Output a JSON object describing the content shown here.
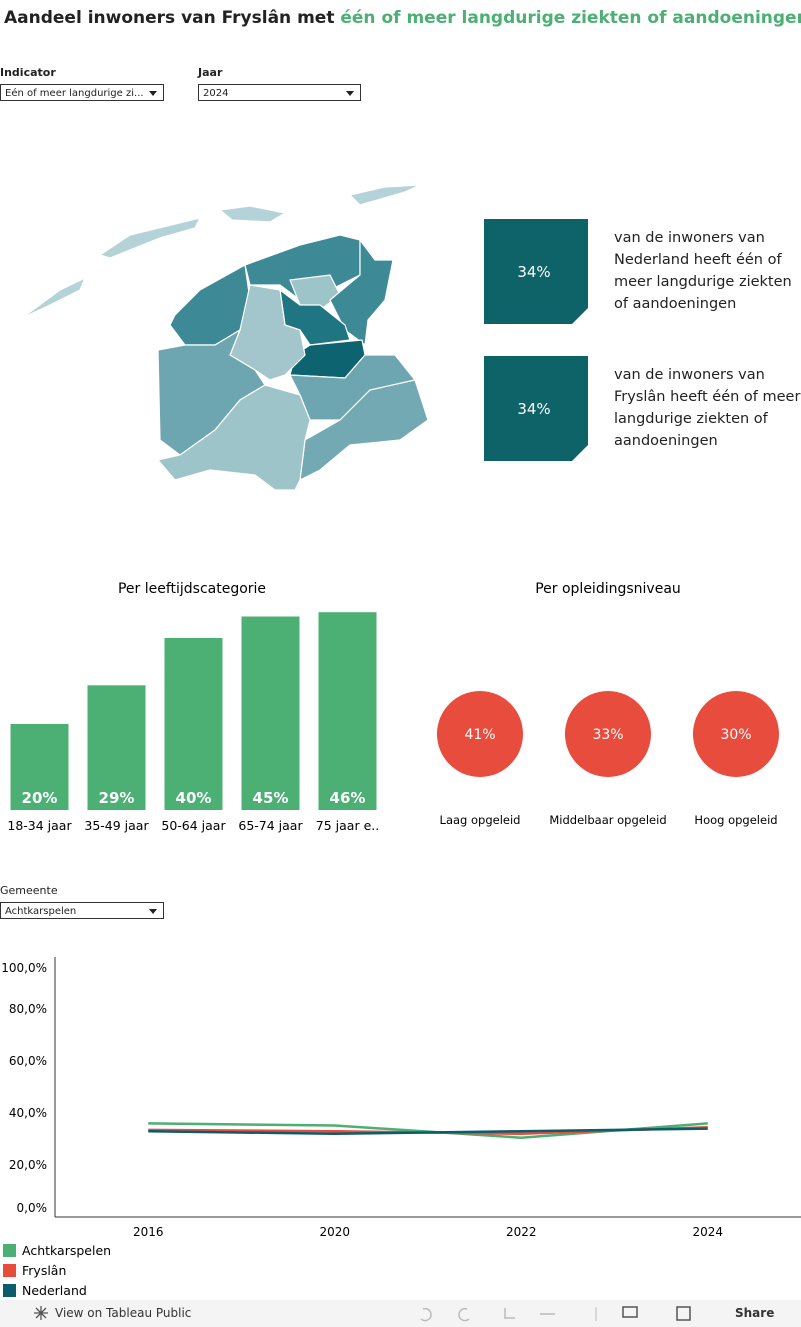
{
  "title": {
    "prefix": "Aandeel inwoners van Fryslân met",
    "highlight": "één of meer langdurige ziekten of aandoeningen"
  },
  "filters": [
    {
      "label": "Indicator",
      "value": "Eén of meer langdurige zi..."
    },
    {
      "label": "Jaar",
      "value": "2024"
    }
  ],
  "kpis": [
    {
      "value": "34%",
      "text": "van de inwoners van Nederland heeft één of meer langdurige ziekten of aandoeningen"
    },
    {
      "value": "34%",
      "text": "van de inwoners van Fryslân heeft één of meer langdurige ziekten of aandoeningen"
    }
  ],
  "gemeente_filter": {
    "label": "Gemeente",
    "value": "Achtkarspelen"
  },
  "chart_data": [
    {
      "type": "bar",
      "title": "Per leeftijdscategorie",
      "categories": [
        "18-34 jaar",
        "35-49 jaar",
        "50-64 jaar",
        "65-74 jaar",
        "75 jaar e.."
      ],
      "values": [
        20,
        29,
        40,
        45,
        46
      ],
      "value_labels": [
        "20%",
        "29%",
        "40%",
        "45%",
        "46%"
      ],
      "color": "#4caf73"
    },
    {
      "type": "dot",
      "title": "Per opleidingsniveau",
      "categories": [
        "Laag opgeleid",
        "Middelbaar opgeleid",
        "Hoog opgeleid"
      ],
      "values": [
        41,
        33,
        30
      ],
      "value_labels": [
        "41%",
        "33%",
        "30%"
      ],
      "color": "#e84c3d"
    },
    {
      "type": "line",
      "x": [
        "2016",
        "2020",
        "2022",
        "2024"
      ],
      "series": [
        {
          "name": "Achtkarspelen",
          "color": "#4caf73",
          "values": [
            36,
            35.2,
            30.5,
            36
          ]
        },
        {
          "name": "Fryslân",
          "color": "#e84c3d",
          "values": [
            33.5,
            33,
            32,
            34.5
          ]
        },
        {
          "name": "Nederland",
          "color": "#0d5c6b",
          "values": [
            33,
            32,
            33,
            34
          ]
        }
      ],
      "ylim": [
        0,
        100
      ],
      "yticks": [
        {
          "value": 0,
          "label": "0,0%"
        },
        {
          "value": 20,
          "label": "20,0%"
        },
        {
          "value": 40,
          "label": "40,0%"
        },
        {
          "value": 60,
          "label": "60,0%"
        },
        {
          "value": 80,
          "label": "80,0%"
        },
        {
          "value": 100,
          "label": "100,0%"
        }
      ]
    }
  ],
  "toolbar": {
    "view": "View on Tableau Public",
    "share": "Share"
  }
}
